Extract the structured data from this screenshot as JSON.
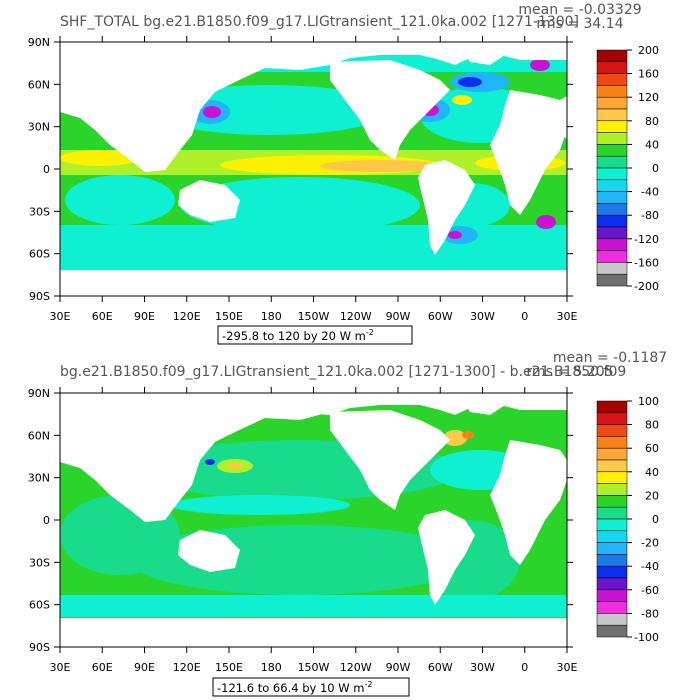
{
  "chart_data": [
    {
      "type": "heatmap",
      "title": "SHF_TOTAL  bg.e21.B1850.f09_g17.LIGtransient_121.0ka.002  [1271-1300]",
      "stats": {
        "mean": "mean = -0.03329",
        "rms": "rms = 34.14"
      },
      "x_ticks": [
        "30E",
        "60E",
        "90E",
        "120E",
        "150E",
        "180",
        "150W",
        "120W",
        "90W",
        "60W",
        "30W",
        "0",
        "30E"
      ],
      "y_ticks": [
        "90N",
        "60N",
        "30N",
        "0",
        "30S",
        "60S",
        "90S"
      ],
      "xlim": [
        30,
        390
      ],
      "ylim": [
        -90,
        90
      ],
      "colorbar_labels": [
        "200",
        "160",
        "120",
        "80",
        "40",
        "0",
        "-40",
        "-80",
        "-120",
        "-160",
        "-200"
      ],
      "colorbar_colors": [
        "#a50000",
        "#d81515",
        "#f04a12",
        "#f98218",
        "#fba637",
        "#fdc74a",
        "#fdf000",
        "#aef02a",
        "#2bd42b",
        "#18dc8c",
        "#0ff0d2",
        "#17d7ef",
        "#21b4f7",
        "#1d7ae6",
        "#0c2ef0",
        "#6a14cc",
        "#c814d2",
        "#f22ce0",
        "#c8c8c8",
        "#707070"
      ],
      "range_label": "-295.8 to 120 by 20  W m-2",
      "range_main": "-295.8 to 120 by 20  W m",
      "range_sup": "-2"
    },
    {
      "type": "heatmap",
      "title": "bg.e21.B1850.f09_g17.LIGtransient_121.0ka.002  [1271-1300] - b.e21.B1850.f09",
      "stats": {
        "mean": "mean = -0.1187",
        "rms": "rms = 5.205"
      },
      "x_ticks": [
        "30E",
        "60E",
        "90E",
        "120E",
        "150E",
        "180",
        "150W",
        "120W",
        "90W",
        "60W",
        "30W",
        "0",
        "30E"
      ],
      "y_ticks": [
        "90N",
        "60N",
        "30N",
        "0",
        "30S",
        "60S",
        "90S"
      ],
      "xlim": [
        30,
        390
      ],
      "ylim": [
        -90,
        90
      ],
      "colorbar_labels": [
        "100",
        "80",
        "60",
        "40",
        "20",
        "0",
        "-20",
        "-40",
        "-60",
        "-80",
        "-100"
      ],
      "colorbar_colors": [
        "#a50000",
        "#d81515",
        "#f04a12",
        "#f98218",
        "#fba637",
        "#fdc74a",
        "#fdf000",
        "#aef02a",
        "#2bd42b",
        "#18dc8c",
        "#0ff0d2",
        "#17d7ef",
        "#21b4f7",
        "#1d7ae6",
        "#0c2ef0",
        "#6a14cc",
        "#c814d2",
        "#f22ce0",
        "#c8c8c8",
        "#707070"
      ],
      "range_label": "-121.6 to 66.4 by 10  W m-2",
      "range_main": "-121.6 to 66.4 by 10  W m",
      "range_sup": "-2"
    }
  ]
}
